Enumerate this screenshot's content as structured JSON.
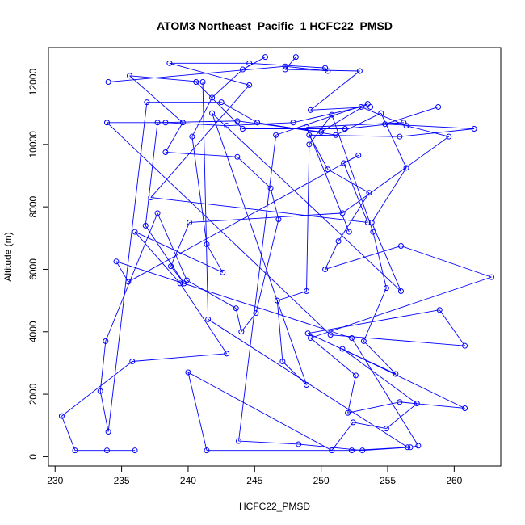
{
  "chart_data": {
    "type": "line",
    "title": "ATOM3 Northeast_Pacific_1 HCFC22_PMSD",
    "xlabel": "HCFC22_PMSD",
    "ylabel": "Altitude (m)",
    "xlim": [
      229.5,
      263.5
    ],
    "ylim": [
      -300,
      13100
    ],
    "x_ticks": [
      230,
      235,
      240,
      245,
      250,
      255,
      260
    ],
    "y_ticks": [
      0,
      2000,
      4000,
      6000,
      8000,
      10000,
      12000
    ],
    "grid": false,
    "legend": "none",
    "colors": {
      "series": "#0000ff",
      "axis": "#000000",
      "background": "#ffffff"
    },
    "series": [
      {
        "marker": "open-circle",
        "points": [
          [
            236.0,
            200
          ],
          [
            233.9,
            200
          ],
          [
            231.5,
            200
          ],
          [
            230.5,
            1300
          ],
          [
            235.8,
            3050
          ],
          [
            242.9,
            3300
          ],
          [
            239.4,
            5550
          ],
          [
            236.0,
            7200
          ],
          [
            242.6,
            5900
          ],
          [
            241.4,
            6800
          ],
          [
            240.3,
            10250
          ],
          [
            241.8,
            11500
          ],
          [
            244.1,
            12400
          ],
          [
            245.8,
            12800
          ],
          [
            248.1,
            12800
          ],
          [
            247.3,
            12400
          ],
          [
            252.9,
            12350
          ],
          [
            249.2,
            11100
          ],
          [
            253.7,
            11200
          ],
          [
            258.8,
            11200
          ],
          [
            254.8,
            10650
          ],
          [
            261.5,
            10500
          ],
          [
            255.9,
            10250
          ],
          [
            249.1,
            10300
          ],
          [
            250.5,
            9200
          ],
          [
            253.6,
            8450
          ],
          [
            251.3,
            6900
          ],
          [
            250.3,
            6000
          ],
          [
            256.0,
            6750
          ],
          [
            262.8,
            5750
          ],
          [
            249.2,
            3800
          ],
          [
            252.6,
            2600
          ],
          [
            252.0,
            1400
          ],
          [
            255.9,
            1750
          ],
          [
            260.8,
            1550
          ],
          [
            251.6,
            3450
          ],
          [
            257.2,
            1700
          ],
          [
            254.9,
            900
          ],
          [
            252.4,
            1100
          ],
          [
            250.8,
            200
          ],
          [
            240.0,
            2700
          ],
          [
            241.4,
            200
          ],
          [
            252.3,
            200
          ],
          [
            256.5,
            300
          ],
          [
            241.5,
            4400
          ],
          [
            241.1,
            12000
          ],
          [
            235.6,
            12200
          ],
          [
            239.6,
            10700
          ],
          [
            238.3,
            9750
          ],
          [
            243.7,
            9600
          ],
          [
            246.2,
            8600
          ],
          [
            246.8,
            7600
          ],
          [
            245.1,
            4600
          ],
          [
            244.0,
            4000
          ],
          [
            243.6,
            4750
          ],
          [
            239.9,
            5650
          ],
          [
            237.7,
            7800
          ],
          [
            233.8,
            3700
          ],
          [
            233.4,
            2100
          ],
          [
            234.0,
            800
          ],
          [
            236.9,
            11350
          ],
          [
            242.5,
            11350
          ],
          [
            245.2,
            10700
          ],
          [
            251.1,
            10300
          ],
          [
            254.5,
            11000
          ],
          [
            256.4,
            9250
          ],
          [
            253.8,
            7500
          ],
          [
            256.0,
            5300
          ],
          [
            241.8,
            11000
          ],
          [
            248.9,
            2300
          ],
          [
            247.1,
            3050
          ],
          [
            246.7,
            5000
          ],
          [
            248.9,
            5300
          ],
          [
            249.1,
            10000
          ],
          [
            250.8,
            10950
          ],
          [
            253.9,
            7200
          ],
          [
            254.9,
            5400
          ],
          [
            253.2,
            3700
          ],
          [
            255.6,
            2650
          ],
          [
            249.0,
            3950
          ],
          [
            258.9,
            4700
          ],
          [
            260.8,
            3550
          ],
          [
            250.7,
            3900
          ],
          [
            233.9,
            10700
          ],
          [
            238.3,
            10700
          ],
          [
            242.9,
            10600
          ],
          [
            247.9,
            10700
          ],
          [
            253.0,
            11200
          ],
          [
            256.4,
            10600
          ],
          [
            259.6,
            10250
          ],
          [
            251.6,
            7800
          ],
          [
            240.1,
            7500
          ],
          [
            238.7,
            6100
          ],
          [
            239.7,
            5550
          ],
          [
            236.8,
            7400
          ],
          [
            237.7,
            10700
          ],
          [
            243.7,
            10750
          ],
          [
            250.0,
            10400
          ],
          [
            253.5,
            11300
          ],
          [
            246.6,
            10300
          ],
          [
            243.8,
            500
          ],
          [
            248.3,
            400
          ],
          [
            253.1,
            200
          ],
          [
            256.7,
            300
          ],
          [
            257.3,
            350
          ],
          [
            252.3,
            3800
          ],
          [
            234.6,
            6250
          ],
          [
            235.5,
            5600
          ],
          [
            252.8,
            9650
          ],
          [
            251.7,
            9400
          ],
          [
            253.5,
            7500
          ],
          [
            237.2,
            8300
          ],
          [
            244.6,
            11900
          ],
          [
            238.6,
            12600
          ],
          [
            244.6,
            12600
          ],
          [
            250.3,
            12450
          ],
          [
            250.5,
            12350
          ],
          [
            247.3,
            12500
          ],
          [
            234.0,
            12000
          ],
          [
            240.6,
            12000
          ],
          [
            244.1,
            10500
          ],
          [
            251.8,
            10500
          ],
          [
            256.2,
            10700
          ],
          [
            248.9,
            10550
          ],
          [
            252.1,
            7200
          ]
        ]
      }
    ]
  }
}
